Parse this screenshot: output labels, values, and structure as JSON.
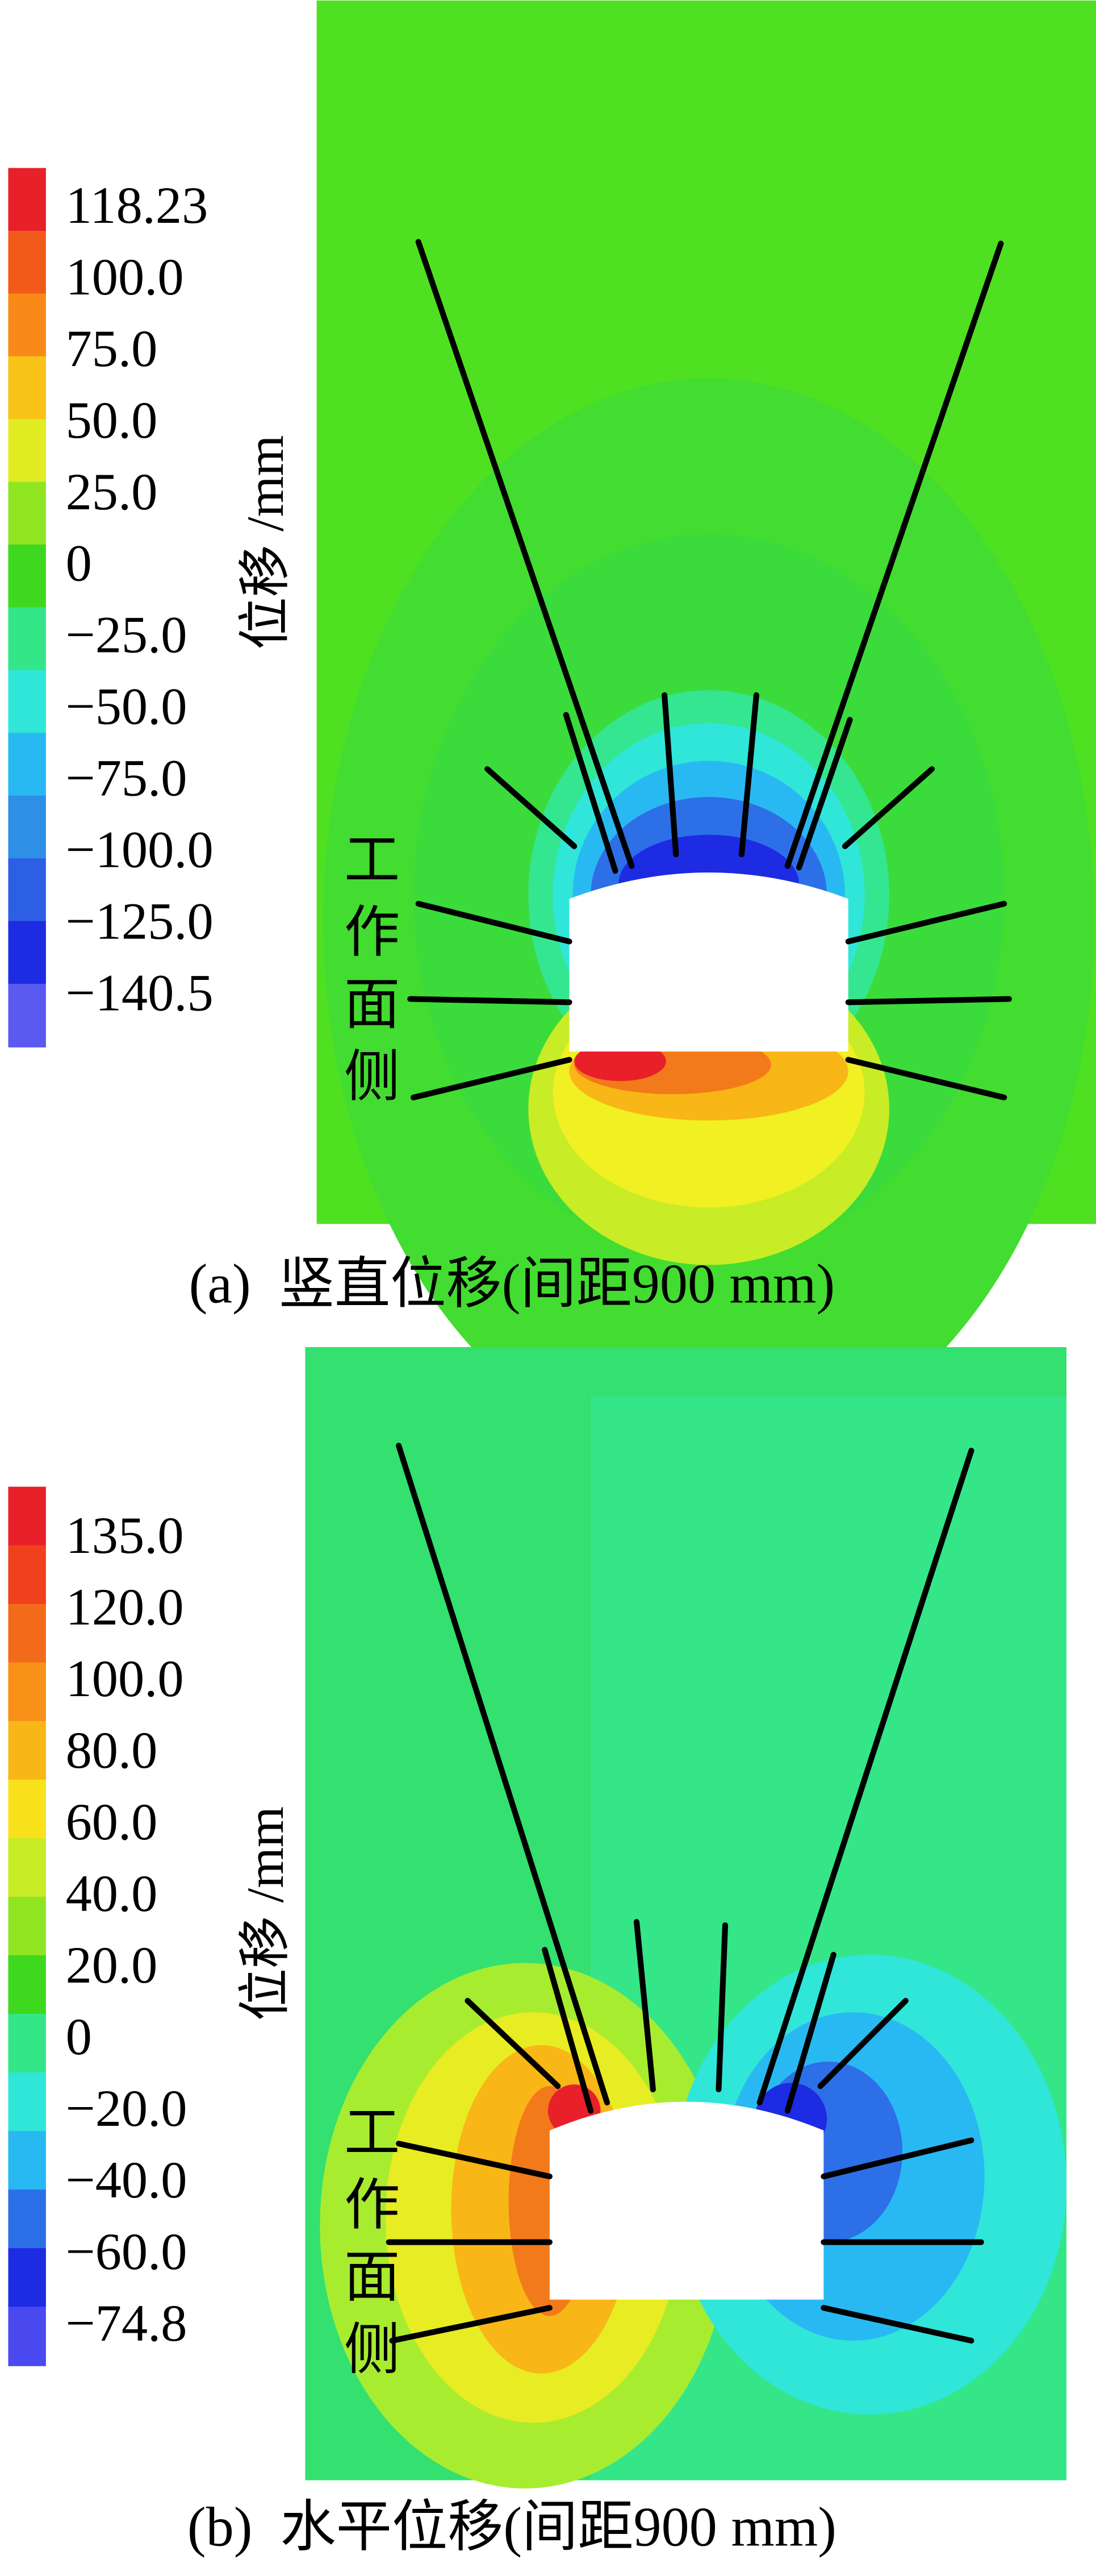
{
  "panels": [
    {
      "colorbar_labels": [
        "118.23",
        "100.0",
        "75.0",
        "50.0",
        "25.0",
        "0",
        "−25.0",
        "−50.0",
        "−75.0",
        "−100.0",
        "−125.0",
        "−140.5"
      ],
      "axis_label": "位移 /mm",
      "side_label": "工作面侧",
      "caption": "(a)  竖直位移(间距900 mm)"
    },
    {
      "colorbar_labels": [
        "135.0",
        "120.0",
        "100.0",
        "80.0",
        "60.0",
        "40.0",
        "20.0",
        "0",
        "−20.0",
        "−40.0",
        "−60.0",
        "−74.8"
      ],
      "axis_label": "位移 /mm",
      "side_label": "工作面侧",
      "caption": "(b)  水平位移(间距900 mm)"
    }
  ]
}
